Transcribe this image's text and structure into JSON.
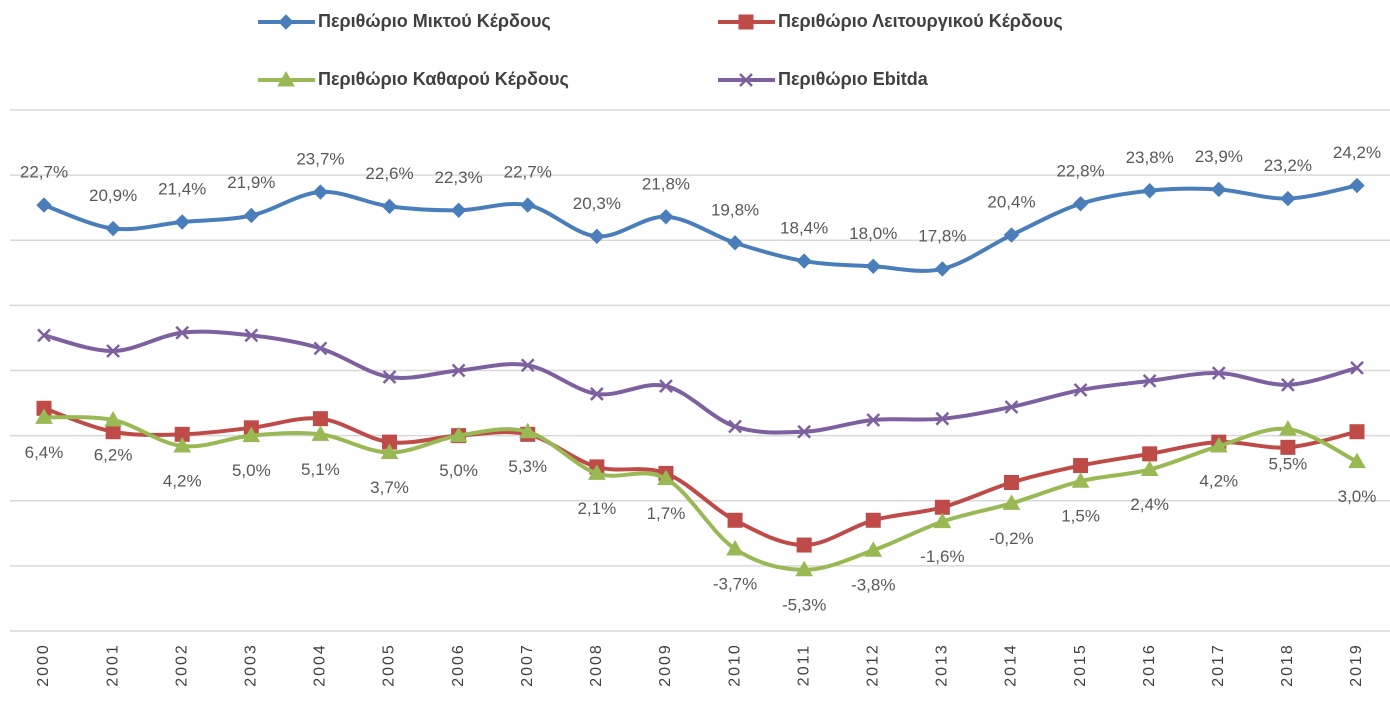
{
  "chart_data": {
    "type": "line",
    "categories": [
      "2000",
      "2001",
      "2002",
      "2003",
      "2004",
      "2005",
      "2006",
      "2007",
      "2008",
      "2009",
      "2010",
      "2011",
      "2012",
      "2013",
      "2014",
      "2015",
      "2016",
      "2017",
      "2018",
      "2019"
    ],
    "ylim": [
      -10,
      30
    ],
    "yticks": [
      -10,
      -5,
      0,
      5,
      10,
      15,
      20,
      25,
      30
    ],
    "ytick_labels": false,
    "grid": true,
    "smooth": true,
    "legend": "top",
    "series": [
      {
        "name": "Περιθώριο Μικτού Κέρδους",
        "color": "#4a7ebb",
        "marker": "diamond",
        "label_position": "above",
        "values": [
          22.7,
          20.9,
          21.4,
          21.9,
          23.7,
          22.6,
          22.3,
          22.7,
          20.3,
          21.8,
          19.8,
          18.4,
          18.0,
          17.8,
          20.4,
          22.8,
          23.8,
          23.9,
          23.2,
          24.2
        ],
        "value_labels": [
          "22,7%",
          "20,9%",
          "21,4%",
          "21,9%",
          "23,7%",
          "22,6%",
          "22,3%",
          "22,7%",
          "20,3%",
          "21,8%",
          "19,8%",
          "18,4%",
          "18,0%",
          "17,8%",
          "20,4%",
          "22,8%",
          "23,8%",
          "23,9%",
          "23,2%",
          "24,2%"
        ]
      },
      {
        "name": "Περιθώριο Λειτουργικού Κέρδους",
        "color": "#be4b48",
        "marker": "square",
        "values": [
          7.1,
          5.3,
          5.1,
          5.6,
          6.3,
          4.5,
          5.0,
          5.1,
          2.6,
          2.1,
          -1.5,
          -3.4,
          -1.5,
          -0.5,
          1.4,
          2.7,
          3.6,
          4.5,
          4.1,
          5.3
        ]
      },
      {
        "name": "Περιθώριο Καθαρού Κέρδους",
        "color": "#98b954",
        "marker": "triangle",
        "label_position": "below",
        "values": [
          6.4,
          6.2,
          4.2,
          5.0,
          5.1,
          3.7,
          5.0,
          5.3,
          2.1,
          1.7,
          -3.7,
          -5.3,
          -3.8,
          -1.6,
          -0.2,
          1.5,
          2.4,
          4.2,
          5.5,
          3.0
        ],
        "value_labels": [
          "6,4%",
          "6,2%",
          "4,2%",
          "5,0%",
          "5,1%",
          "3,7%",
          "5,0%",
          "5,3%",
          "2,1%",
          "1,7%",
          "-3,7%",
          "-5,3%",
          "-3,8%",
          "-1,6%",
          "-0,2%",
          "1,5%",
          "2,4%",
          "4,2%",
          "5,5%",
          "3,0%"
        ]
      },
      {
        "name": "Περιθώριο Ebitda",
        "color": "#7d60a0",
        "marker": "x",
        "values": [
          12.7,
          11.5,
          12.9,
          12.7,
          11.7,
          9.5,
          10.0,
          10.4,
          8.2,
          8.8,
          5.7,
          5.3,
          6.2,
          6.3,
          7.2,
          8.5,
          9.2,
          9.8,
          8.9,
          10.2
        ]
      }
    ]
  }
}
